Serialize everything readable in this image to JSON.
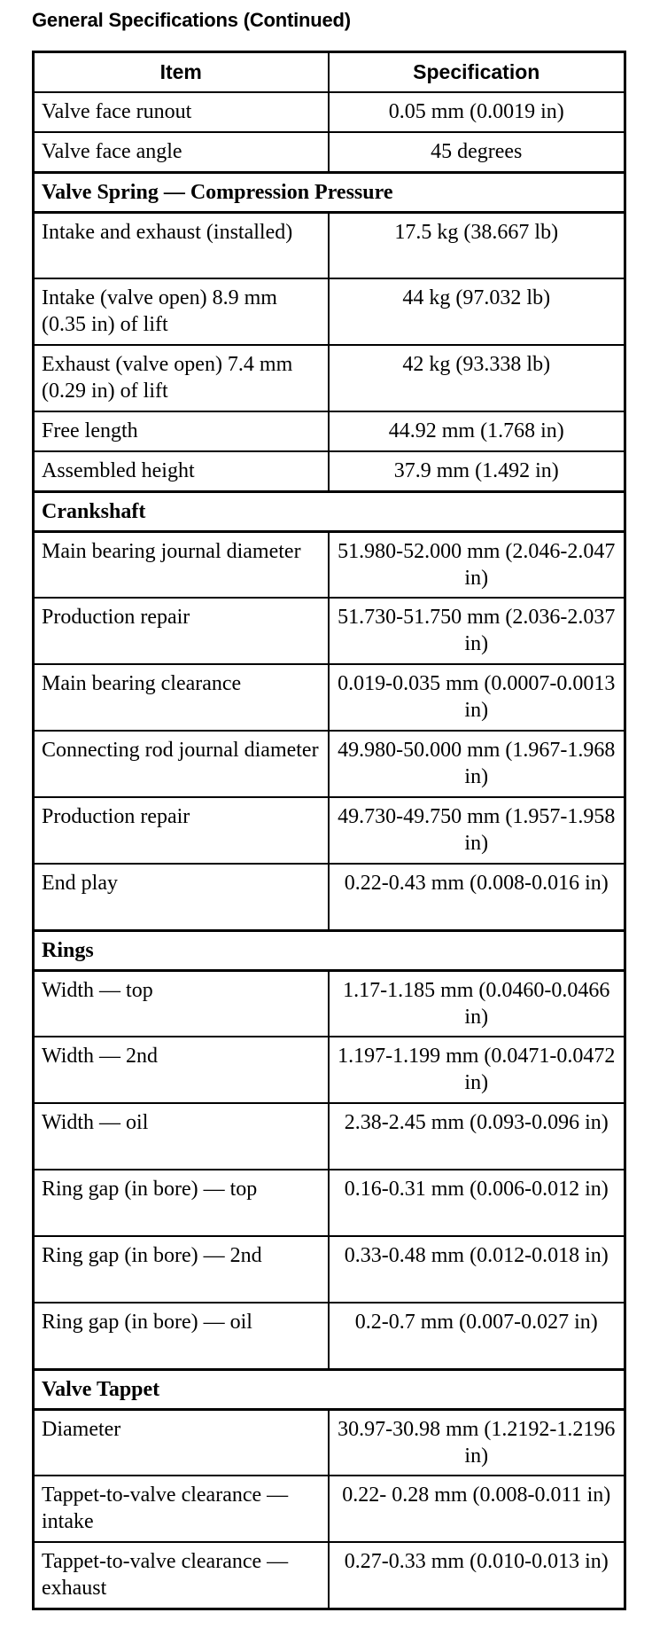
{
  "title": "General Specifications (Continued)",
  "headers": {
    "item": "Item",
    "specification": "Specification"
  },
  "rows": [
    {
      "item": "Valve face runout",
      "spec": "0.05 mm (0.0019 in)"
    },
    {
      "item": "Valve face angle",
      "spec": "45 degrees"
    },
    {
      "section": "Valve Spring — Compression Pressure"
    },
    {
      "item": "Intake and exhaust (installed)",
      "spec": "17.5 kg (38.667 lb)",
      "tall": true
    },
    {
      "item": "Intake (valve open) 8.9 mm (0.35 in) of lift",
      "spec": "44 kg (97.032 lb)",
      "tall": true
    },
    {
      "item": "Exhaust (valve open) 7.4 mm (0.29 in) of lift",
      "spec": "42 kg (93.338 lb)",
      "tall": true
    },
    {
      "item": "Free length",
      "spec": "44.92 mm (1.768 in)"
    },
    {
      "item": "Assembled height",
      "spec": "37.9 mm (1.492 in)"
    },
    {
      "section": "Crankshaft"
    },
    {
      "item": "Main bearing journal diameter",
      "spec": "51.980-52.000 mm (2.046-2.047 in)",
      "tall": true
    },
    {
      "item": "Production repair",
      "spec": "51.730-51.750 mm (2.036-2.037 in)",
      "tall": true
    },
    {
      "item": "Main bearing clearance",
      "spec": "0.019-0.035 mm (0.0007-0.0013 in)",
      "tall": true
    },
    {
      "item": "Connecting rod journal diameter",
      "spec": "49.980-50.000 mm (1.967-1.968 in)",
      "tall": true
    },
    {
      "item": "Production repair",
      "spec": "49.730-49.750 mm (1.957-1.958 in)",
      "tall": true
    },
    {
      "item": "End play",
      "spec": "0.22-0.43 mm (0.008-0.016 in)",
      "tall": true
    },
    {
      "section": "Rings"
    },
    {
      "item": "Width — top",
      "spec": "1.17-1.185 mm (0.0460-0.0466 in)",
      "tall": true
    },
    {
      "item": "Width — 2nd",
      "spec": "1.197-1.199 mm (0.0471-0.0472 in)",
      "tall": true
    },
    {
      "item": "Width — oil",
      "spec": "2.38-2.45 mm (0.093-0.096 in)",
      "tall": true
    },
    {
      "item": "Ring gap (in bore) — top",
      "spec": "0.16-0.31 mm (0.006-0.012 in)",
      "tall": true
    },
    {
      "item": "Ring gap (in bore) — 2nd",
      "spec": "0.33-0.48 mm (0.012-0.018 in)",
      "tall": true
    },
    {
      "item": "Ring gap (in bore) — oil",
      "spec": "0.2-0.7 mm (0.007-0.027 in)",
      "tall": true
    },
    {
      "section": "Valve Tappet"
    },
    {
      "item": "Diameter",
      "spec": "30.97-30.98 mm (1.2192-1.2196 in)",
      "tall": true
    },
    {
      "item": "Tappet-to-valve clearance — intake",
      "spec": "0.22- 0.28 mm (0.008-0.011 in)",
      "tall": true
    },
    {
      "item": "Tappet-to-valve clearance — exhaust",
      "spec": "0.27-0.33 mm (0.010-0.013 in)",
      "tall": true
    }
  ]
}
